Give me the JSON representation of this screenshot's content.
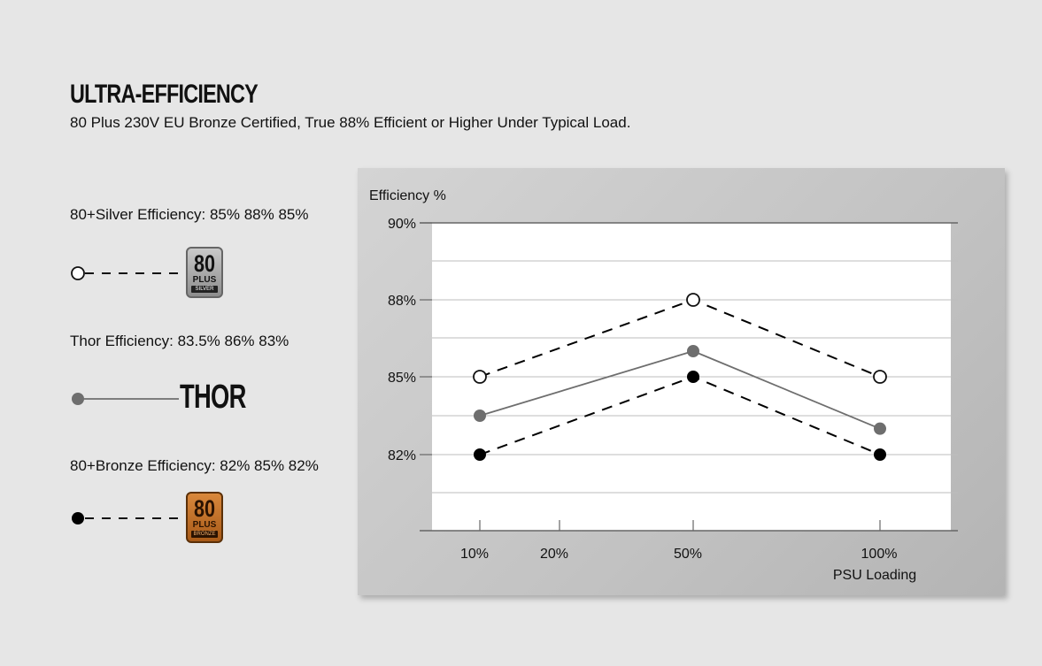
{
  "header": {
    "title": "ULTRA-EFFICIENCY",
    "subtitle": "80 Plus 230V EU Bronze Certified, True 88% Efficient or Higher Under Typical Load."
  },
  "legend": [
    {
      "label": "80+Silver Efficiency: 85% 88% 85%",
      "marker": "open-circle",
      "line": "dashed",
      "badge": {
        "number": "80",
        "plus": "PLUS",
        "tier": "SILVER"
      }
    },
    {
      "label": "Thor Efficiency:  83.5% 86% 83%",
      "marker": "gray-circle",
      "line": "solid",
      "brand": "THOR"
    },
    {
      "label": "80+Bronze Efficiency: 82% 85% 82%",
      "marker": "black-circle",
      "line": "dashed",
      "badge": {
        "number": "80",
        "plus": "PLUS",
        "tier": "BRONZE"
      }
    }
  ],
  "chart_data": {
    "type": "line",
    "ylabel": "Efficiency %",
    "xlabel": "PSU Loading",
    "x_ticks": [
      "10%",
      "20%",
      "50%",
      "100%"
    ],
    "y_ticks": [
      "90%",
      "88%",
      "85%",
      "82%"
    ],
    "x": [
      "10%",
      "50%",
      "100%"
    ],
    "series": [
      {
        "name": "80+Silver",
        "values": [
          85,
          88,
          85
        ],
        "style": "dashed",
        "marker": "open",
        "color": "#000000"
      },
      {
        "name": "Thor",
        "values": [
          83.5,
          86,
          83
        ],
        "style": "solid",
        "marker": "filled",
        "color": "#6e6e6e"
      },
      {
        "name": "80+Bronze",
        "values": [
          82,
          85,
          82
        ],
        "style": "dashed",
        "marker": "filled",
        "color": "#000000"
      }
    ],
    "grid": true
  },
  "colors": {
    "background": "#e6e6e6",
    "silver": "#a8a8a8",
    "bronze": "#c0702a",
    "thor_line": "#6e6e6e"
  }
}
